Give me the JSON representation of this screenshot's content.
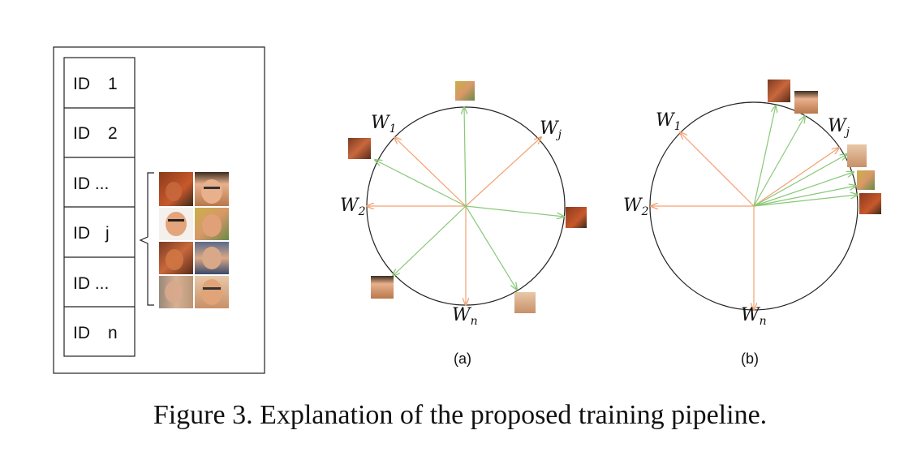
{
  "id_table": {
    "rows": [
      {
        "label": "ID",
        "value": "1"
      },
      {
        "label": "ID",
        "value": "2"
      },
      {
        "label": "ID ...",
        "value": ""
      },
      {
        "label": "ID",
        "value": "j"
      },
      {
        "label": "ID ...",
        "value": ""
      },
      {
        "label": "ID",
        "value": "n"
      }
    ]
  },
  "panel_a": {
    "label": "(a)",
    "weights": [
      {
        "base": "W",
        "sub": "1"
      },
      {
        "base": "W",
        "sub": "j"
      },
      {
        "base": "W",
        "sub": "2"
      },
      {
        "base": "W",
        "sub": "n"
      }
    ]
  },
  "panel_b": {
    "label": "(b)",
    "weights": [
      {
        "base": "W",
        "sub": "1"
      },
      {
        "base": "W",
        "sub": "j"
      },
      {
        "base": "W",
        "sub": "2"
      },
      {
        "base": "W",
        "sub": "n"
      }
    ]
  },
  "caption": "Figure 3. Explanation of the proposed training pipeline.",
  "colors": {
    "weight_vector": "#f4a070",
    "feature_vector": "#88c878",
    "outline": "#222222"
  }
}
